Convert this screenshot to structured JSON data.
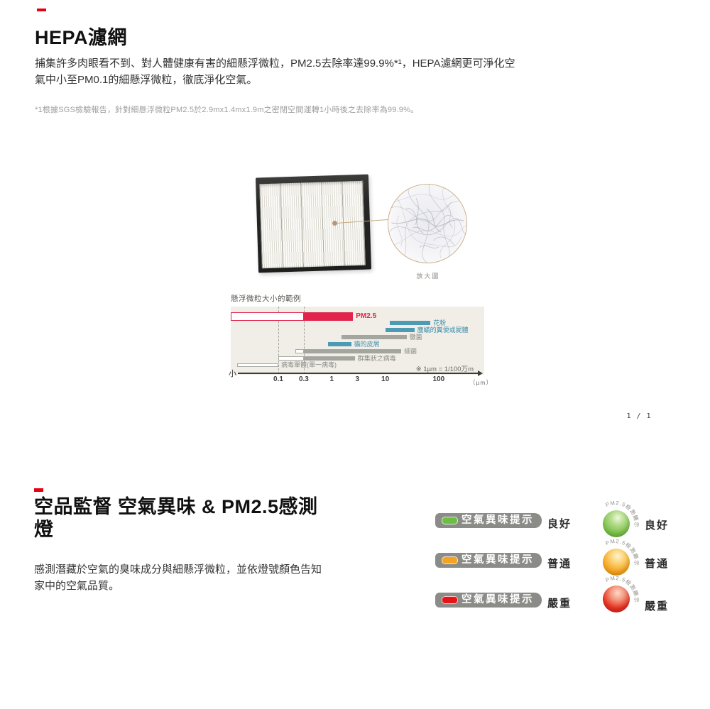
{
  "accent": {
    "dash_color": "#e60012"
  },
  "hepa": {
    "heading": "HEPA濾網",
    "body": "捕集許多肉眼看不到、對人體健康有害的細懸浮微粒，PM2.5去除率達99.9%*¹，HEPA濾網更可淨化空氣中小至PM0.1的細懸浮微粒，徹底淨化空氣。",
    "footnote": "*1根據SGS檢驗報告，針對細懸浮微粒PM2.5於2.9mx1.4mx1.9m之密閉空間運轉1小時後之去除率為99.9%。",
    "magnifier_label": "放大圖"
  },
  "chart_data": {
    "type": "bar",
    "orientation": "horizontal",
    "title": "懸浮微粒大小的範例",
    "x_scale": "log",
    "x_unit": "（µm）",
    "axis_min_label": "小",
    "note": "※ 1µm = 1/100万m",
    "x_ticks": [
      "0.1",
      "0.3",
      "1",
      "3",
      "10",
      "100"
    ],
    "x_tick_values": [
      0.1,
      0.3,
      1,
      3,
      10,
      100
    ],
    "guides_um": [
      0.1,
      0.3
    ],
    "xlim": [
      0.013,
      700
    ],
    "rows": [
      {
        "label": "PM2.5",
        "color": "red",
        "outline_um": [
          0.013,
          0.3
        ],
        "solid_um": [
          0.3,
          2.5
        ]
      },
      {
        "label": "花粉",
        "color": "blue",
        "solid_um": [
          12,
          70
        ]
      },
      {
        "label": "塵蟎的糞便或屍體",
        "color": "blue",
        "solid_um": [
          10,
          35
        ]
      },
      {
        "label": "黴菌",
        "color": "gray",
        "solid_um": [
          1.5,
          25
        ]
      },
      {
        "label": "貓的皮屑",
        "color": "blue",
        "solid_um": [
          0.85,
          2.3
        ]
      },
      {
        "label": "細菌",
        "color": "gray",
        "outline_um": [
          0.21,
          0.3
        ],
        "solid_um": [
          0.3,
          20
        ]
      },
      {
        "label": "群集狀之病毒",
        "color": "gray",
        "outline_um": [
          0.1,
          0.3
        ],
        "solid_um": [
          0.3,
          2.7
        ]
      },
      {
        "label": "病毒單體(單一病毒)",
        "color": "outline",
        "outline_um": [
          0.017,
          0.1
        ]
      }
    ],
    "colors": {
      "red": "#e2234d",
      "blue": "#4d9ab5",
      "gray": "#a5a5a0",
      "outline_border": "#a9a9a3",
      "plot_bg": "#f1eee7",
      "label_red": "#e2234d",
      "label_blue": "#3e8fae",
      "label_gray": "#8b8b86"
    }
  },
  "pagination": "1 / 1",
  "sensor": {
    "heading": "空品監督 空氣異味 & PM2.5感測燈",
    "body": "感測潛藏於空氣的臭味成分與細懸浮微粒，並依燈號顏色告知家中的空氣品質。",
    "badge_label": "空氣異味提示",
    "sphere_label": "PM2.5檢測顯示",
    "levels": [
      {
        "status": "良好",
        "color": "#6dbe45",
        "sphere": [
          "#eef8da",
          "#b4dd8d",
          "#7dc24c",
          "#55a32b"
        ]
      },
      {
        "status": "普通",
        "color": "#f4a324",
        "sphere": [
          "#fdf3cf",
          "#fbd478",
          "#f5a521",
          "#e18a00"
        ]
      },
      {
        "status": "嚴重",
        "color": "#e61317",
        "sphere": [
          "#fcd9c8",
          "#f49a80",
          "#e73223",
          "#c31a12"
        ]
      }
    ]
  }
}
